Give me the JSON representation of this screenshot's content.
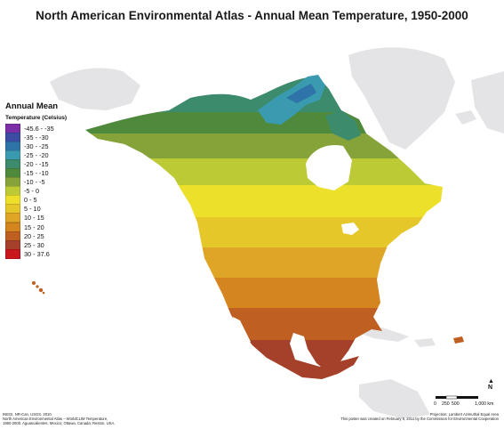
{
  "title": "North American Environmental Atlas - Annual Mean Temperature, 1950-2000",
  "legend": {
    "title": "Annual Mean",
    "subtitle": "Temperature (Celsius)",
    "classes": [
      {
        "label": "-45.6 - -35",
        "color": "#7b2fa6"
      },
      {
        "label": "-35 - -30",
        "color": "#3c4ba3"
      },
      {
        "label": "-30 - -25",
        "color": "#2f74a8"
      },
      {
        "label": "-25 - -20",
        "color": "#3a9bb0"
      },
      {
        "label": "-20 - -15",
        "color": "#3d8b6d"
      },
      {
        "label": "-15 - -10",
        "color": "#4f8a3c"
      },
      {
        "label": "-10 - -5",
        "color": "#86a33a"
      },
      {
        "label": "-5 - 0",
        "color": "#bccb35"
      },
      {
        "label": "0 - 5",
        "color": "#ece02a"
      },
      {
        "label": "5 - 10",
        "color": "#e6c72a"
      },
      {
        "label": "10 - 15",
        "color": "#dfa526"
      },
      {
        "label": "15 - 20",
        "color": "#d4851f"
      },
      {
        "label": "20 - 25",
        "color": "#bf5f22"
      },
      {
        "label": "25 - 30",
        "color": "#a5412a"
      },
      {
        "label": "30 - 37.6",
        "color": "#c8171d"
      }
    ]
  },
  "scale": {
    "labels": [
      "0",
      "250",
      "500",
      "1,000 km"
    ],
    "north": "N"
  },
  "credits_left": [
    "INEGI, NR-Can, USGS. 2010.",
    "North American Environmental Atlas – WorldCLIM Temperature,",
    "1950-2000. Aguascalientes, Mexico; Ottawa, Canada; Reston, USA."
  ],
  "credits_right": [
    "Projection: Lambert Azimuthal Equal Area",
    "This poster was created on February 9, 2011 by the Commission for Environmental Cooperation"
  ],
  "colors": {
    "other_land": "#e4e4e6",
    "water": "#ffffff",
    "border": "#ffffff"
  }
}
